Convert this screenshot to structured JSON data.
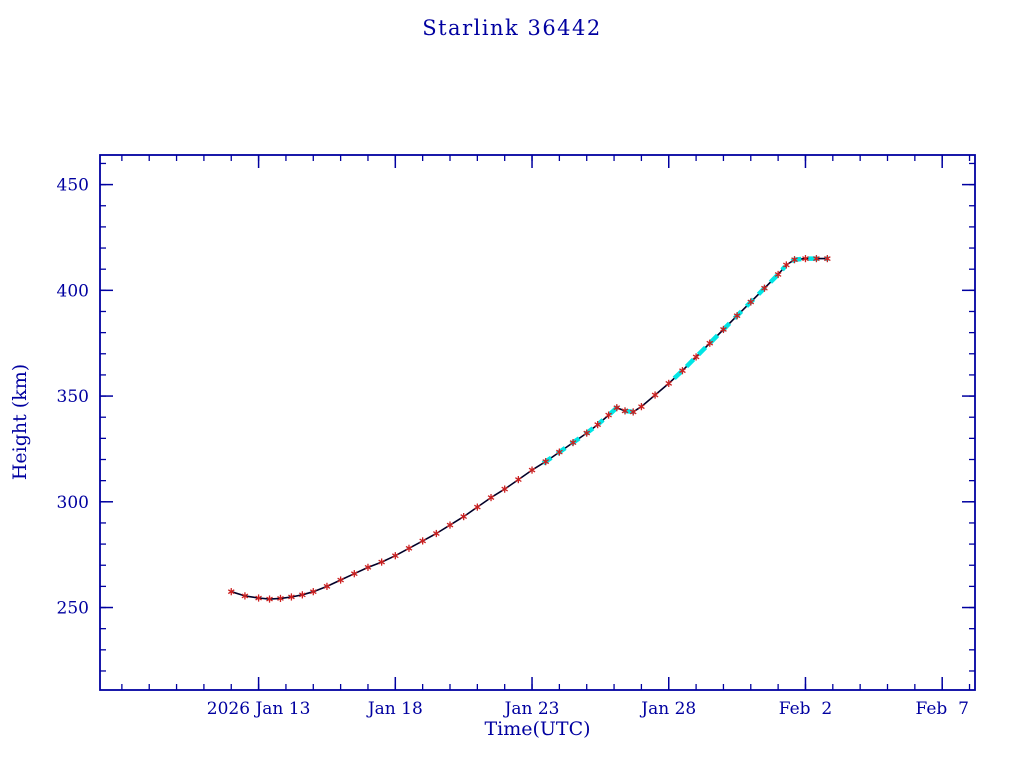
{
  "title": "Starlink 36442",
  "axes": {
    "xlabel": "Time(UTC)",
    "ylabel": "Height (km)",
    "x_ticks": [
      {
        "day": 0,
        "label": "2026 Jan 13"
      },
      {
        "day": 5,
        "label": "Jan 18"
      },
      {
        "day": 10,
        "label": "Jan 23"
      },
      {
        "day": 15,
        "label": "Jan 28"
      },
      {
        "day": 20,
        "label": "Feb  2"
      },
      {
        "day": 25,
        "label": "Feb  7"
      }
    ],
    "y_ticks": [
      {
        "value": 250,
        "label": "250"
      },
      {
        "value": 300,
        "label": "300"
      },
      {
        "value": 350,
        "label": "350"
      },
      {
        "value": 400,
        "label": "400"
      },
      {
        "value": 450,
        "label": "450"
      }
    ],
    "x_minor_step_days": 1,
    "y_minor_step_km": 10
  },
  "colors": {
    "text_and_frame": "#0000a0",
    "curve": "#000028",
    "marker": "#cc2020",
    "overlay": "#00e5e5",
    "background": "#ffffff"
  },
  "chart_data": {
    "type": "line",
    "title": "Starlink 36442",
    "xlabel": "Time(UTC)",
    "ylabel": "Height (km)",
    "x_unit": "days since 2026 Jan 13 00:00 UTC",
    "xlim": [
      -5.8,
      26.2
    ],
    "ylim": [
      211,
      464
    ],
    "grid": false,
    "legend": "none",
    "series": [
      {
        "name": "height-profile",
        "style": "solid line with red asterisk markers",
        "x": [
          -1.0,
          -0.5,
          0.0,
          0.4,
          0.8,
          1.2,
          1.6,
          2.0,
          2.5,
          3.0,
          3.5,
          4.0,
          4.5,
          5.0,
          5.5,
          6.0,
          6.5,
          7.0,
          7.5,
          8.0,
          8.5,
          9.0,
          9.5,
          10.0,
          10.5,
          11.0,
          11.5,
          12.0,
          12.4,
          12.8,
          13.1,
          13.4,
          13.7,
          14.0,
          14.5,
          15.0,
          15.5,
          16.0,
          16.5,
          17.0,
          17.5,
          18.0,
          18.5,
          19.0,
          19.3,
          19.6,
          20.0,
          20.4,
          20.8
        ],
        "y": [
          257.5,
          255.5,
          254.5,
          254.0,
          254.3,
          255.0,
          256.0,
          257.5,
          260.0,
          263.0,
          266.0,
          269.0,
          271.5,
          274.5,
          278.0,
          281.5,
          285.0,
          289.0,
          293.0,
          297.5,
          302.0,
          306.0,
          310.5,
          315.0,
          319.0,
          323.5,
          328.0,
          332.5,
          336.5,
          341.0,
          344.5,
          343.0,
          342.5,
          345.0,
          350.5,
          356.0,
          362.0,
          368.5,
          375.0,
          381.5,
          388.0,
          394.5,
          401.0,
          407.5,
          412.0,
          414.5,
          415.0,
          415.0,
          415.0
        ]
      },
      {
        "name": "cyan-dashed-overlay",
        "style": "thick cyan dashed overlay on curve",
        "segments_day_ranges": [
          [
            10.4,
            12.6
          ],
          [
            12.85,
            13.8
          ],
          [
            15.2,
            19.25
          ],
          [
            19.5,
            20.85
          ]
        ]
      }
    ]
  }
}
